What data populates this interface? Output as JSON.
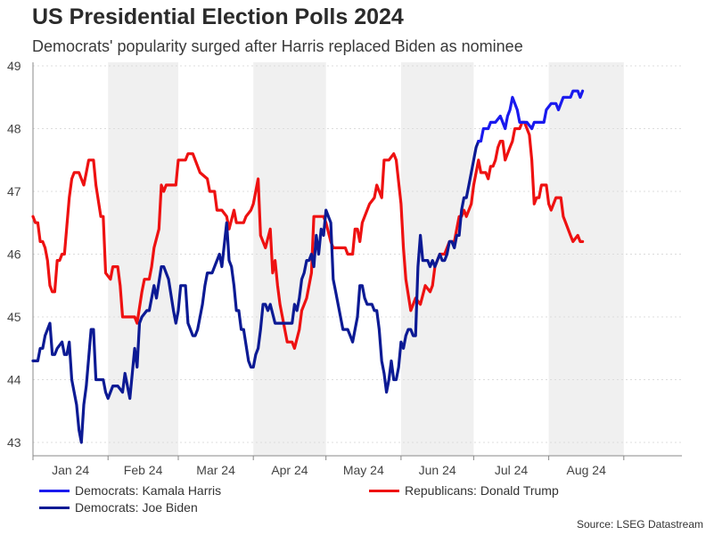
{
  "title": "US Presidential Election Polls 2024",
  "subtitle": "Democrats' popularity surged after Harris replaced Biden as nominee",
  "source": "Source: LSEG Datastream",
  "chart_data": {
    "type": "line",
    "ylim": [
      43,
      49
    ],
    "yticks": [
      43,
      44,
      45,
      46,
      47,
      48,
      49
    ],
    "x_range_days": [
      0,
      268
    ],
    "months": [
      {
        "label": "Jan 24",
        "start": 0,
        "end": 31
      },
      {
        "label": "Feb 24",
        "start": 31,
        "end": 60
      },
      {
        "label": "Mar 24",
        "start": 60,
        "end": 91
      },
      {
        "label": "Apr 24",
        "start": 91,
        "end": 121
      },
      {
        "label": "May 24",
        "start": 121,
        "end": 152
      },
      {
        "label": "Jun 24",
        "start": 152,
        "end": 182
      },
      {
        "label": "Jul 24",
        "start": 182,
        "end": 213
      },
      {
        "label": "Aug 24",
        "start": 213,
        "end": 244
      }
    ],
    "shaded_months": [
      "Feb 24",
      "Apr 24",
      "Jun 24",
      "Aug 24"
    ],
    "series": [
      {
        "name": "Republicans: Donald Trump",
        "color": "#ee1111",
        "x": [
          0,
          1,
          2,
          3,
          4,
          5,
          6,
          7,
          8,
          9,
          10,
          11,
          12,
          13,
          15,
          16,
          17,
          19,
          21,
          22,
          23,
          25,
          26,
          28,
          29,
          30,
          32,
          33,
          35,
          36,
          37,
          38,
          40,
          42,
          43,
          45,
          46,
          48,
          49,
          50,
          52,
          53,
          54,
          55,
          56,
          59,
          60,
          61,
          63,
          64,
          66,
          68,
          69,
          72,
          73,
          75,
          76,
          78,
          80,
          81,
          83,
          84,
          87,
          88,
          90,
          91,
          93,
          94,
          96,
          98,
          99,
          100,
          101,
          102,
          105,
          107,
          108,
          110,
          111,
          113,
          115,
          116,
          117,
          120,
          121,
          123,
          124,
          126,
          128,
          129,
          130,
          132,
          133,
          134,
          135,
          136,
          137,
          139,
          141,
          142,
          144,
          145,
          147,
          149,
          150,
          152,
          153,
          154,
          156,
          158,
          160,
          162,
          164,
          165,
          166,
          168,
          170,
          171,
          172,
          174,
          176,
          177,
          178,
          179,
          181,
          182,
          184,
          185,
          187,
          188,
          189,
          190,
          191,
          192,
          193,
          194,
          195,
          197,
          198,
          199,
          201,
          202,
          203,
          205,
          206,
          207,
          208,
          209,
          210,
          212,
          213,
          214,
          216,
          218,
          219,
          220,
          222,
          223,
          225,
          226,
          227
        ],
        "values": [
          46.6,
          46.5,
          46.5,
          46.2,
          46.2,
          46.1,
          45.9,
          45.5,
          45.4,
          45.4,
          45.9,
          45.9,
          46.0,
          46.0,
          46.9,
          47.2,
          47.3,
          47.3,
          47.1,
          47.3,
          47.5,
          47.5,
          47.1,
          46.6,
          46.6,
          45.7,
          45.6,
          45.8,
          45.8,
          45.5,
          45.0,
          45.0,
          45.0,
          45.0,
          44.9,
          45.4,
          45.6,
          45.6,
          45.8,
          46.1,
          46.4,
          47.1,
          47.0,
          47.1,
          47.1,
          47.1,
          47.5,
          47.5,
          47.5,
          47.6,
          47.6,
          47.4,
          47.3,
          47.2,
          47.0,
          47.0,
          46.7,
          46.7,
          46.6,
          46.4,
          46.7,
          46.5,
          46.5,
          46.6,
          46.7,
          46.8,
          47.2,
          46.3,
          46.1,
          46.4,
          45.7,
          45.9,
          45.5,
          45.2,
          44.6,
          44.6,
          44.5,
          44.8,
          45.1,
          45.3,
          45.7,
          46.6,
          46.6,
          46.6,
          46.5,
          46.2,
          46.1,
          46.1,
          46.1,
          46.1,
          46.0,
          46.0,
          46.4,
          46.4,
          46.2,
          46.5,
          46.6,
          46.8,
          46.9,
          47.1,
          46.9,
          47.5,
          47.5,
          47.6,
          47.5,
          46.8,
          46.1,
          45.6,
          45.1,
          45.3,
          45.2,
          45.5,
          45.4,
          45.5,
          45.8,
          46.0,
          46.0,
          46.1,
          46.2,
          46.2,
          46.6,
          46.6,
          46.7,
          46.6,
          46.8,
          47.1,
          47.5,
          47.3,
          47.3,
          47.2,
          47.4,
          47.4,
          47.5,
          47.7,
          47.8,
          47.8,
          47.5,
          47.7,
          47.8,
          48.0,
          48.0,
          48.1,
          48.1,
          47.9,
          47.5,
          46.8,
          46.9,
          46.9,
          47.1,
          47.1,
          46.8,
          46.7,
          46.9,
          46.9,
          46.6,
          46.5,
          46.3,
          46.2,
          46.3,
          46.2,
          46.2
        ]
      },
      {
        "name": "Democrats: Joe Biden",
        "color": "#0c1a94",
        "x": [
          0,
          1,
          2,
          3,
          4,
          5,
          6,
          7,
          8,
          9,
          10,
          12,
          13,
          14,
          15,
          16,
          18,
          19,
          20,
          21,
          22,
          24,
          25,
          26,
          27,
          29,
          30,
          31,
          32,
          33,
          34,
          35,
          37,
          38,
          40,
          42,
          43,
          44,
          45,
          47,
          48,
          49,
          50,
          51,
          53,
          54,
          56,
          58,
          59,
          60,
          61,
          63,
          64,
          66,
          67,
          68,
          69,
          70,
          71,
          72,
          73,
          74,
          75,
          77,
          78,
          80,
          81,
          82,
          83,
          84,
          85,
          86,
          87,
          89,
          90,
          91,
          92,
          93,
          94,
          95,
          96,
          97,
          98,
          100,
          101,
          102,
          103,
          104,
          105,
          106,
          107,
          108,
          109,
          110,
          111,
          112,
          113,
          114,
          115,
          116,
          117,
          118,
          119,
          120,
          121,
          123,
          124,
          125,
          126,
          127,
          128,
          129,
          130,
          131,
          132,
          133,
          134,
          135,
          136,
          137,
          138,
          139,
          140,
          141,
          142,
          143,
          144,
          145,
          146,
          147,
          148,
          149,
          150,
          151,
          152,
          153,
          154,
          155,
          156,
          157,
          158,
          159,
          160,
          161,
          162,
          163,
          164,
          165,
          166,
          167,
          168,
          169,
          170,
          171,
          172,
          173,
          174,
          175,
          176,
          177,
          178,
          179,
          180,
          181,
          182,
          183,
          184
        ],
        "values": [
          44.3,
          44.3,
          44.3,
          44.5,
          44.5,
          44.7,
          44.8,
          44.9,
          44.4,
          44.4,
          44.5,
          44.6,
          44.4,
          44.4,
          44.6,
          44.0,
          43.6,
          43.2,
          43.0,
          43.6,
          43.9,
          44.8,
          44.8,
          44.0,
          44.0,
          44.0,
          43.8,
          43.7,
          43.8,
          43.9,
          43.9,
          43.9,
          43.8,
          44.1,
          43.7,
          44.5,
          44.2,
          44.9,
          45.0,
          45.1,
          45.1,
          45.3,
          45.5,
          45.3,
          45.8,
          45.8,
          45.6,
          45.1,
          44.9,
          45.1,
          45.5,
          45.5,
          44.9,
          44.7,
          44.7,
          44.8,
          45.0,
          45.2,
          45.5,
          45.7,
          45.7,
          45.7,
          45.8,
          46.0,
          45.8,
          46.5,
          45.9,
          45.8,
          45.5,
          45.1,
          45.1,
          44.8,
          44.8,
          44.3,
          44.2,
          44.2,
          44.4,
          44.5,
          44.8,
          45.2,
          45.2,
          45.1,
          45.2,
          44.9,
          44.9,
          44.9,
          44.9,
          44.9,
          44.9,
          44.9,
          44.9,
          45.2,
          45.1,
          45.3,
          45.6,
          45.7,
          45.9,
          45.9,
          46.0,
          45.8,
          46.3,
          46.0,
          46.4,
          46.3,
          46.7,
          46.5,
          45.6,
          45.4,
          45.2,
          45.0,
          44.8,
          44.8,
          44.8,
          44.7,
          44.6,
          44.8,
          45.0,
          45.5,
          45.5,
          45.3,
          45.2,
          45.2,
          45.2,
          45.1,
          45.1,
          44.8,
          44.3,
          44.1,
          43.8,
          44.0,
          44.3,
          44.0,
          44.0,
          44.2,
          44.6,
          44.5,
          44.7,
          44.8,
          44.8,
          44.7,
          44.7,
          45.8,
          46.3,
          45.9,
          45.9,
          45.9,
          45.8,
          45.9,
          45.8,
          45.9,
          46.0,
          45.9,
          45.9,
          46.0,
          46.2,
          46.2,
          46.1,
          46.3,
          46.3,
          46.7,
          46.9,
          46.9,
          47.1,
          47.3,
          47.5,
          47.7,
          47.8
        ]
      },
      {
        "name": "Democrats: Kamala Harris",
        "color": "#1a1aee",
        "x": [
          184,
          185,
          186,
          188,
          189,
          191,
          193,
          195,
          196,
          197,
          198,
          200,
          201,
          203,
          204,
          206,
          207,
          208,
          209,
          211,
          212,
          214,
          216,
          217,
          218,
          219,
          220,
          222,
          223,
          225,
          226,
          227
        ],
        "values": [
          47.8,
          47.8,
          48.0,
          48.0,
          48.1,
          48.1,
          48.2,
          48.0,
          48.2,
          48.3,
          48.5,
          48.3,
          48.1,
          48.1,
          48.1,
          48.0,
          48.1,
          48.1,
          48.1,
          48.1,
          48.3,
          48.4,
          48.4,
          48.3,
          48.4,
          48.5,
          48.5,
          48.5,
          48.6,
          48.6,
          48.5,
          48.6
        ]
      }
    ],
    "legend": [
      {
        "label": "Democrats: Kamala Harris",
        "color": "#1a1aee"
      },
      {
        "label": "Republicans: Donald Trump",
        "color": "#ee1111"
      },
      {
        "label": "Democrats: Joe Biden",
        "color": "#0c1a94"
      }
    ]
  }
}
